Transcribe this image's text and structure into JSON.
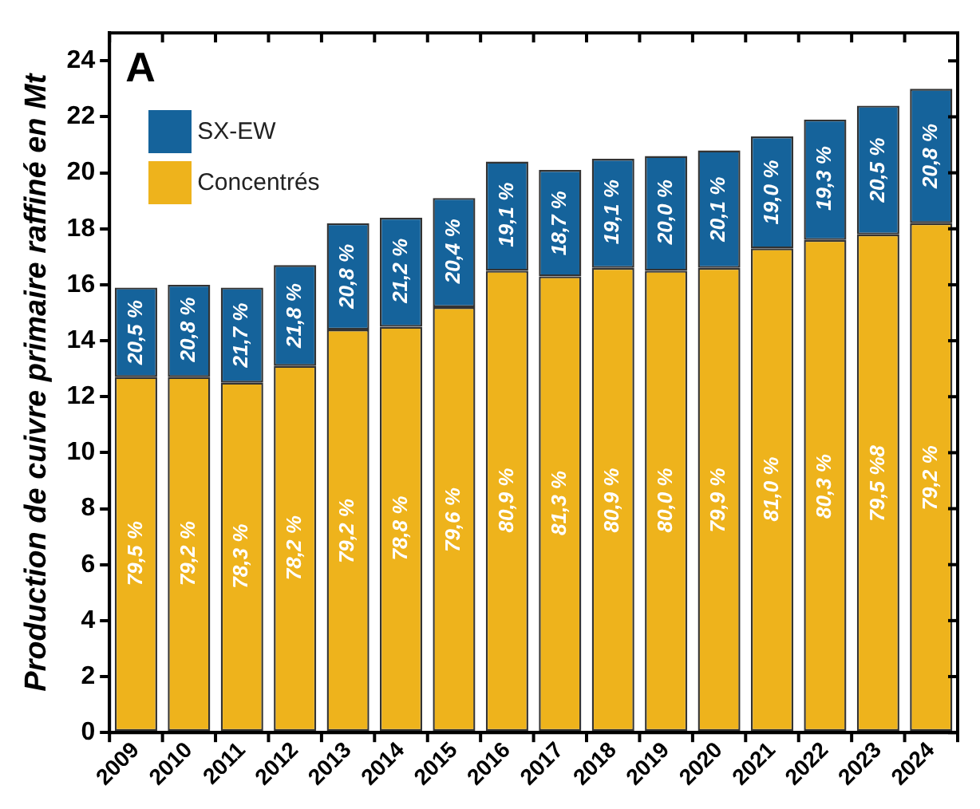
{
  "chart_data": {
    "type": "bar",
    "stacked": true,
    "ylabel": "Production de cuivre primaire raffiné en Mt",
    "annotations": [
      "A",
      {
        "text": "79,5 %",
        "x": "2009",
        "y": 6.4
      },
      {
        "text": "79,2 %",
        "x": "2010",
        "y": 6.4
      },
      {
        "text": "78,3 %",
        "x": "2011",
        "y": 6.3
      },
      {
        "text": "78,2 %",
        "x": "2012",
        "y": 6.6
      },
      {
        "text": "79,2 %",
        "x": "2013",
        "y": 7.2
      },
      {
        "text": "78,8 %",
        "x": "2014",
        "y": 7.3
      },
      {
        "text": "79,6 %",
        "x": "2015",
        "y": 7.6
      },
      {
        "text": "80,9 %",
        "x": "2016",
        "y": 8.3
      },
      {
        "text": "81,3 %",
        "x": "2017",
        "y": 8.2
      },
      {
        "text": "80,9 %",
        "x": "2018",
        "y": 8.3
      },
      {
        "text": "80,0 %",
        "x": "2019",
        "y": 8.3
      },
      {
        "text": "79,9 %",
        "x": "2020",
        "y": 8.3
      },
      {
        "text": "81,0 %",
        "x": "2021",
        "y": 8.7
      },
      {
        "text": "80,3 %",
        "x": "2022",
        "y": 8.8
      },
      {
        "text": "79,5 %8",
        "x": "2023",
        "y": 8.9
      },
      {
        "text": "79,2 %",
        "x": "2024",
        "y": 9.1
      },
      {
        "text": "20,5 %",
        "x": "2009",
        "y": 14.3
      },
      {
        "text": "20,8 %",
        "x": "2010",
        "y": 14.4
      },
      {
        "text": "21,7 %",
        "x": "2011",
        "y": 14.2
      },
      {
        "text": "21,8 %",
        "x": "2012",
        "y": 14.9
      },
      {
        "text": "20,8 %",
        "x": "2013",
        "y": 16.3
      },
      {
        "text": "21,2 %",
        "x": "2014",
        "y": 16.5
      },
      {
        "text": "20,4 %",
        "x": "2015",
        "y": 17.2
      },
      {
        "text": "19,1 %",
        "x": "2016",
        "y": 18.5
      },
      {
        "text": "18,7 %",
        "x": "2017",
        "y": 18.2
      },
      {
        "text": "19,1 %",
        "x": "2018",
        "y": 18.6
      },
      {
        "text": "20,0 %",
        "x": "2019",
        "y": 18.6
      },
      {
        "text": "20,1 %",
        "x": "2020",
        "y": 18.7
      },
      {
        "text": "19,0 %",
        "x": "2021",
        "y": 19.3
      },
      {
        "text": "19,3 %",
        "x": "2022",
        "y": 19.8
      },
      {
        "text": "20,5 %",
        "x": "2023",
        "y": 20.1
      },
      {
        "text": "20,8 %",
        "x": "2024",
        "y": 20.6
      }
    ],
    "categories": [
      "2009",
      "2010",
      "2011",
      "2012",
      "2013",
      "2014",
      "2015",
      "2016",
      "2017",
      "2018",
      "2019",
      "2020",
      "2021",
      "2022",
      "2023",
      "2024"
    ],
    "series": [
      {
        "name": "Concentrés",
        "color": "#eeb31c",
        "values": [
          12.7,
          12.7,
          12.5,
          13.1,
          14.4,
          14.5,
          15.2,
          16.5,
          16.3,
          16.6,
          16.5,
          16.6,
          17.3,
          17.6,
          17.8,
          18.2
        ]
      },
      {
        "name": "SX-EW",
        "color": "#15639b",
        "values": [
          3.2,
          3.3,
          3.4,
          3.6,
          3.8,
          3.9,
          3.9,
          3.9,
          3.8,
          3.9,
          4.1,
          4.2,
          4.0,
          4.3,
          4.6,
          4.8
        ]
      }
    ],
    "ylim": [
      0,
      25
    ],
    "yticks": [
      0,
      2,
      4,
      6,
      8,
      10,
      12,
      14,
      16,
      18,
      20,
      22,
      24
    ],
    "grid": false,
    "legend": "top left"
  }
}
